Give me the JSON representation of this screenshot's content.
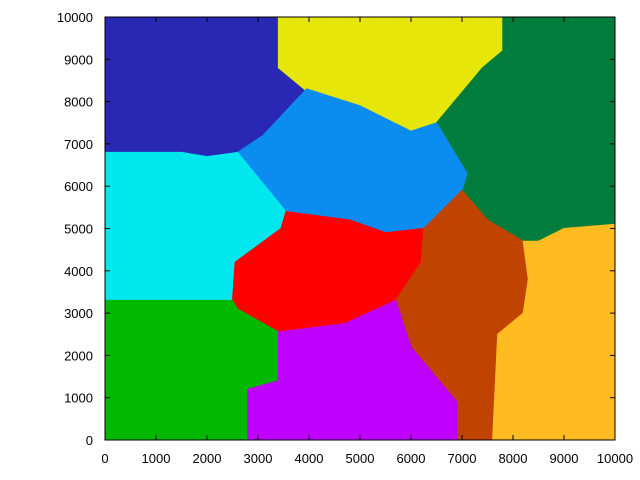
{
  "chart_data": {
    "type": "scatter",
    "title": "",
    "xlabel": "",
    "ylabel": "",
    "xlim": [
      0,
      10000
    ],
    "ylim": [
      0,
      10000
    ],
    "grid": false,
    "legend": "none",
    "x_ticks": [
      "0",
      "1000",
      "2000",
      "3000",
      "4000",
      "5000",
      "6000",
      "7000",
      "8000",
      "9000",
      "10000"
    ],
    "y_ticks": [
      "0",
      "1000",
      "2000",
      "3000",
      "4000",
      "5000",
      "6000",
      "7000",
      "8000",
      "9000",
      "10000"
    ],
    "x_tick_values": [
      0,
      1000,
      2000,
      3000,
      4000,
      5000,
      6000,
      7000,
      8000,
      9000,
      10000
    ],
    "y_tick_values": [
      0,
      1000,
      2000,
      3000,
      4000,
      5000,
      6000,
      7000,
      8000,
      9000,
      10000
    ],
    "clusters": [
      {
        "color": "#2828b4",
        "polygon": [
          [
            0,
            10000
          ],
          [
            3400,
            10000
          ],
          [
            3400,
            8800
          ],
          [
            3950,
            8300
          ],
          [
            3100,
            7200
          ],
          [
            2600,
            6800
          ],
          [
            2000,
            6700
          ],
          [
            1500,
            6800
          ],
          [
            0,
            6800
          ]
        ]
      },
      {
        "color": "#e6e60a",
        "polygon": [
          [
            3400,
            10000
          ],
          [
            7800,
            10000
          ],
          [
            7800,
            9200
          ],
          [
            7400,
            8800
          ],
          [
            6500,
            7500
          ],
          [
            6000,
            7300
          ],
          [
            5000,
            7900
          ],
          [
            4000,
            8200
          ],
          [
            3400,
            8800
          ]
        ]
      },
      {
        "color": "#007d3c",
        "polygon": [
          [
            7800,
            10000
          ],
          [
            10000,
            10000
          ],
          [
            10000,
            5100
          ],
          [
            9000,
            5000
          ],
          [
            8500,
            4700
          ],
          [
            8200,
            4700
          ],
          [
            7500,
            5200
          ],
          [
            7000,
            5900
          ],
          [
            7100,
            6300
          ],
          [
            6500,
            7500
          ],
          [
            7400,
            8800
          ],
          [
            7800,
            9200
          ]
        ]
      },
      {
        "color": "#0a8cf0",
        "polygon": [
          [
            3950,
            8300
          ],
          [
            5000,
            7900
          ],
          [
            6000,
            7300
          ],
          [
            6500,
            7500
          ],
          [
            7100,
            6300
          ],
          [
            7000,
            5900
          ],
          [
            6250,
            5000
          ],
          [
            5500,
            4900
          ],
          [
            4800,
            5200
          ],
          [
            3550,
            5400
          ],
          [
            2600,
            6800
          ],
          [
            3100,
            7200
          ]
        ]
      },
      {
        "color": "#00e8ee",
        "polygon": [
          [
            0,
            6800
          ],
          [
            1500,
            6800
          ],
          [
            2000,
            6700
          ],
          [
            2600,
            6800
          ],
          [
            3550,
            5400
          ],
          [
            3450,
            5000
          ],
          [
            2550,
            4200
          ],
          [
            2500,
            3300
          ],
          [
            1500,
            3300
          ],
          [
            0,
            3300
          ]
        ]
      },
      {
        "color": "#ff0000",
        "polygon": [
          [
            3550,
            5400
          ],
          [
            4800,
            5200
          ],
          [
            5500,
            4900
          ],
          [
            6250,
            5000
          ],
          [
            6200,
            4200
          ],
          [
            5700,
            3300
          ],
          [
            4700,
            2750
          ],
          [
            3400,
            2550
          ],
          [
            2600,
            3100
          ],
          [
            2500,
            3300
          ],
          [
            2550,
            4200
          ],
          [
            3450,
            5000
          ]
        ]
      },
      {
        "color": "#c04400",
        "polygon": [
          [
            6250,
            5000
          ],
          [
            7000,
            5900
          ],
          [
            7500,
            5200
          ],
          [
            8200,
            4700
          ],
          [
            8300,
            3800
          ],
          [
            8200,
            3000
          ],
          [
            7700,
            2500
          ],
          [
            7600,
            0
          ],
          [
            6900,
            0
          ],
          [
            6900,
            900
          ],
          [
            6000,
            2200
          ],
          [
            5700,
            3300
          ],
          [
            6200,
            4200
          ]
        ]
      },
      {
        "color": "#ffbc20",
        "polygon": [
          [
            8200,
            4700
          ],
          [
            8500,
            4700
          ],
          [
            9000,
            5000
          ],
          [
            10000,
            5100
          ],
          [
            10000,
            0
          ],
          [
            7600,
            0
          ],
          [
            7700,
            2500
          ],
          [
            8200,
            3000
          ],
          [
            8300,
            3800
          ]
        ]
      },
      {
        "color": "#00b800",
        "polygon": [
          [
            0,
            3300
          ],
          [
            1500,
            3300
          ],
          [
            2500,
            3300
          ],
          [
            2600,
            3100
          ],
          [
            3400,
            2550
          ],
          [
            3400,
            1400
          ],
          [
            2800,
            1200
          ],
          [
            2800,
            0
          ],
          [
            0,
            0
          ]
        ]
      },
      {
        "color": "#c000ff",
        "polygon": [
          [
            2800,
            1200
          ],
          [
            3400,
            1400
          ],
          [
            3400,
            2550
          ],
          [
            4700,
            2750
          ],
          [
            5700,
            3300
          ],
          [
            6000,
            2200
          ],
          [
            6900,
            900
          ],
          [
            6900,
            0
          ],
          [
            2800,
            0
          ]
        ]
      }
    ]
  }
}
